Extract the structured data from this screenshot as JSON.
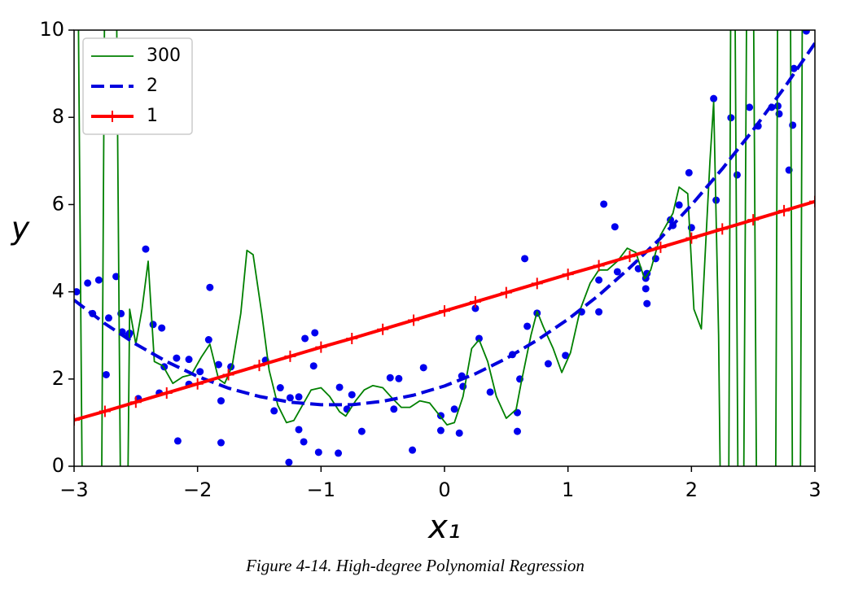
{
  "chart_data": {
    "type": "line",
    "caption": "Figure 4-14. High-degree Polynomial Regression",
    "xlabel": "x₁",
    "ylabel": "y",
    "xlim": [
      -3,
      3
    ],
    "ylim": [
      0,
      10
    ],
    "xticks": [
      {
        "value": -3,
        "label": "−3"
      },
      {
        "value": -2,
        "label": "−2"
      },
      {
        "value": -1,
        "label": "−1"
      },
      0,
      1,
      2,
      3
    ],
    "yticks": [
      0,
      2,
      4,
      6,
      8,
      10
    ],
    "legend": "upper left",
    "series": [
      {
        "name": "300",
        "color": "green",
        "style": "solid",
        "x": [
          -2.97,
          -2.93,
          -2.78,
          -2.75,
          -2.66,
          -2.62,
          -2.57,
          -2.55,
          -2.5,
          -2.45,
          -2.4,
          -2.35,
          -2.28,
          -2.2,
          -2.12,
          -2.05,
          -1.97,
          -1.9,
          -1.83,
          -1.78,
          -1.72,
          -1.65,
          -1.6,
          -1.55,
          -1.48,
          -1.42,
          -1.35,
          -1.28,
          -1.22,
          -1.15,
          -1.08,
          -1.0,
          -0.93,
          -0.85,
          -0.8,
          -0.72,
          -0.65,
          -0.58,
          -0.5,
          -0.42,
          -0.35,
          -0.28,
          -0.2,
          -0.12,
          -0.05,
          0.02,
          0.08,
          0.15,
          0.22,
          0.28,
          0.35,
          0.42,
          0.5,
          0.58,
          0.62,
          0.7,
          0.75,
          0.8,
          0.88,
          0.95,
          1.02,
          1.1,
          1.18,
          1.25,
          1.32,
          1.4,
          1.48,
          1.55,
          1.62,
          1.67,
          1.75,
          1.85,
          1.9,
          1.97,
          2.02,
          2.08,
          2.15,
          2.18,
          2.22,
          2.24,
          2.3,
          2.32,
          2.35,
          2.38,
          2.42,
          2.45,
          2.5,
          2.53,
          2.68,
          2.7,
          2.8,
          2.82,
          2.88,
          2.9
        ],
        "values": [
          12,
          -2,
          -2,
          12,
          12,
          -2,
          -2,
          3.6,
          2.8,
          3.6,
          4.7,
          2.4,
          2.3,
          1.9,
          2.05,
          2.1,
          2.5,
          2.8,
          2.0,
          1.9,
          2.3,
          3.5,
          4.95,
          4.85,
          3.5,
          2.2,
          1.4,
          1.0,
          1.05,
          1.4,
          1.75,
          1.8,
          1.6,
          1.25,
          1.15,
          1.5,
          1.75,
          1.85,
          1.8,
          1.55,
          1.35,
          1.35,
          1.5,
          1.45,
          1.2,
          0.95,
          1.0,
          1.6,
          2.7,
          2.9,
          2.4,
          1.6,
          1.1,
          1.3,
          1.9,
          3.0,
          3.55,
          3.2,
          2.7,
          2.15,
          2.6,
          3.6,
          4.2,
          4.5,
          4.5,
          4.7,
          5.0,
          4.9,
          4.3,
          4.5,
          5.3,
          5.8,
          6.4,
          6.25,
          3.6,
          3.15,
          7.0,
          8.35,
          3.0,
          -2,
          -2,
          12,
          12,
          -2,
          -2,
          12,
          12,
          -2,
          -2,
          12,
          12,
          -2,
          -2,
          12
        ]
      },
      {
        "name": "2",
        "color": "#0000dd",
        "style": "dashed",
        "x": [
          -3,
          -2.75,
          -2.5,
          -2.25,
          -2,
          -1.75,
          -1.5,
          -1.25,
          -1,
          -0.75,
          -0.5,
          -0.25,
          0,
          0.25,
          0.5,
          0.75,
          1,
          1.25,
          1.5,
          1.75,
          2,
          2.25,
          2.5,
          2.75,
          3
        ],
        "values": [
          3.81,
          3.27,
          2.8,
          2.4,
          2.06,
          1.79,
          1.6,
          1.47,
          1.41,
          1.41,
          1.49,
          1.63,
          1.84,
          2.12,
          2.47,
          2.89,
          3.37,
          3.92,
          4.55,
          5.23,
          5.99,
          6.82,
          7.71,
          8.67,
          9.7
        ]
      },
      {
        "name": "1",
        "color": "red",
        "style": "plus",
        "x": [
          -3,
          -2.75,
          -2.5,
          -2.25,
          -2,
          -1.75,
          -1.5,
          -1.25,
          -1,
          -0.75,
          -0.5,
          -0.25,
          0,
          0.25,
          0.5,
          0.75,
          1,
          1.25,
          1.5,
          1.75,
          2,
          2.25,
          2.5,
          2.75,
          3
        ],
        "values": [
          1.06,
          1.26,
          1.47,
          1.68,
          1.89,
          2.1,
          2.31,
          2.52,
          2.73,
          2.93,
          3.14,
          3.35,
          3.56,
          3.77,
          3.98,
          4.19,
          4.4,
          4.6,
          4.81,
          5.02,
          5.23,
          5.44,
          5.65,
          5.86,
          6.07
        ]
      }
    ],
    "scatter": {
      "color": "#0000ee",
      "x": [
        -2.98,
        -2.89,
        -2.85,
        -2.8,
        -2.74,
        -2.72,
        -2.66,
        -2.62,
        -2.61,
        -2.56,
        -2.55,
        -2.48,
        -2.42,
        -2.36,
        -2.31,
        -2.29,
        -2.27,
        -2.17,
        -2.16,
        -2.07,
        -2.07,
        -1.98,
        -1.91,
        -1.9,
        -1.83,
        -1.81,
        -1.81,
        -1.73,
        -1.45,
        -1.38,
        -1.33,
        -1.26,
        -1.25,
        -1.18,
        -1.18,
        -1.14,
        -1.13,
        -1.06,
        -1.05,
        -1.02,
        -0.86,
        -0.85,
        -0.79,
        -0.75,
        -0.67,
        -0.44,
        -0.41,
        -0.37,
        -0.26,
        -0.17,
        -0.03,
        -0.03,
        0.08,
        0.12,
        0.14,
        0.15,
        0.25,
        0.28,
        0.37,
        0.55,
        0.59,
        0.59,
        0.61,
        0.65,
        0.67,
        0.75,
        0.84,
        0.98,
        1.11,
        1.25,
        1.25,
        1.29,
        1.38,
        1.4,
        1.57,
        1.63,
        1.63,
        1.64,
        1.64,
        1.71,
        1.83,
        1.85,
        1.9,
        1.98,
        2.0,
        2.18,
        2.2,
        2.32,
        2.37,
        2.47,
        2.54,
        2.65,
        2.7,
        2.71,
        2.79,
        2.83,
        2.82,
        2.93
      ],
      "values": [
        4.0,
        4.2,
        3.5,
        4.27,
        2.1,
        3.4,
        4.35,
        3.5,
        3.08,
        3.0,
        3.05,
        1.55,
        4.98,
        3.25,
        1.68,
        3.17,
        2.28,
        2.48,
        0.58,
        2.45,
        1.88,
        2.17,
        2.9,
        4.1,
        2.33,
        1.5,
        0.54,
        2.28,
        2.43,
        1.27,
        1.8,
        0.09,
        1.57,
        1.59,
        0.84,
        0.56,
        2.93,
        2.3,
        3.06,
        0.32,
        0.3,
        1.81,
        1.31,
        1.64,
        0.8,
        2.03,
        1.31,
        2.01,
        0.37,
        2.26,
        1.16,
        0.82,
        1.31,
        0.76,
        2.07,
        1.83,
        3.62,
        2.93,
        1.7,
        2.56,
        1.23,
        0.8,
        2.0,
        4.76,
        3.21,
        3.51,
        2.35,
        2.54,
        3.54,
        4.27,
        3.54,
        6.01,
        5.49,
        4.46,
        4.53,
        4.31,
        4.07,
        3.73,
        4.42,
        4.76,
        5.65,
        5.52,
        5.99,
        6.73,
        5.47,
        8.43,
        6.1,
        7.99,
        6.68,
        8.23,
        7.8,
        8.23,
        8.26,
        8.08,
        6.79,
        9.12,
        7.82,
        9.98
      ]
    }
  }
}
